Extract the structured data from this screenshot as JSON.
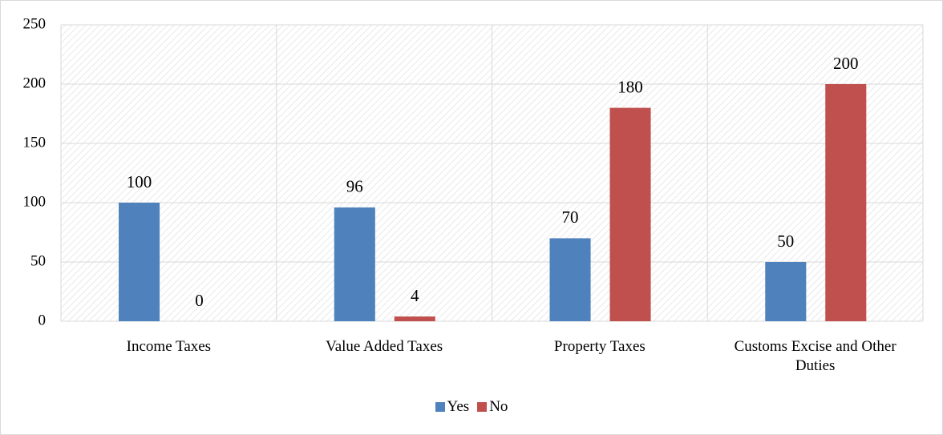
{
  "chart_data": {
    "type": "bar",
    "categories": [
      "Income Taxes",
      "Value Added Taxes",
      "Property Taxes",
      "Customs Excise and Other Duties"
    ],
    "series": [
      {
        "name": "Yes",
        "color": "#4f81bd",
        "values": [
          100,
          96,
          70,
          50
        ]
      },
      {
        "name": "No",
        "color": "#c0504d",
        "values": [
          0,
          4,
          180,
          200
        ]
      }
    ],
    "ylim": [
      0,
      250
    ],
    "yticks": [
      0,
      50,
      100,
      150,
      200,
      250
    ],
    "grid": true,
    "legend": "bottom"
  }
}
